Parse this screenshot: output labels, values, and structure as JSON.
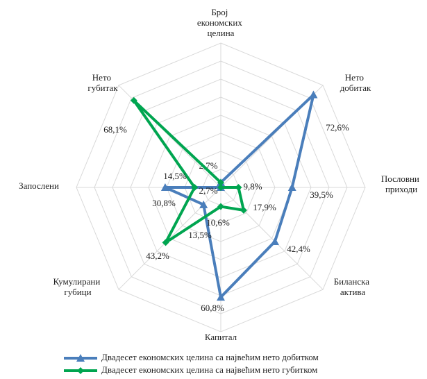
{
  "chart_data": {
    "type": "radar",
    "categories": [
      "Број економских целина",
      "Нето добитак",
      "Пословни приходи",
      "Биланска актива",
      "Капитал",
      "Кумулирани губици",
      "Запослени",
      "Нето губитак"
    ],
    "rlim": [
      0,
      80
    ],
    "rticks": [
      10,
      20,
      30,
      40,
      50,
      60,
      70,
      80
    ],
    "grid": true,
    "legend": "bottom",
    "series": [
      {
        "name": "Двадесет економских целина са највећим нето добитком",
        "color": "#4a7ebb",
        "marker": "triangle",
        "values": [
          2.7,
          72.6,
          39.5,
          42.4,
          60.8,
          13.5,
          30.8,
          0
        ],
        "value_labels": [
          "2,7%",
          "72,6%",
          "39,5%",
          "42,4%",
          "60,8%",
          "13,5%",
          "30,8%",
          null
        ]
      },
      {
        "name": "Двадесет економских целина са највећим нето губитком",
        "color": "#00a550",
        "marker": "diamond",
        "values": [
          2.7,
          0,
          9.8,
          17.9,
          10.6,
          43.2,
          14.5,
          68.1
        ],
        "value_labels": [
          "2,7%",
          null,
          "9,8%",
          "17,9%",
          "10,6%",
          "43,2%",
          "14,5%",
          "68,1%"
        ]
      }
    ]
  }
}
